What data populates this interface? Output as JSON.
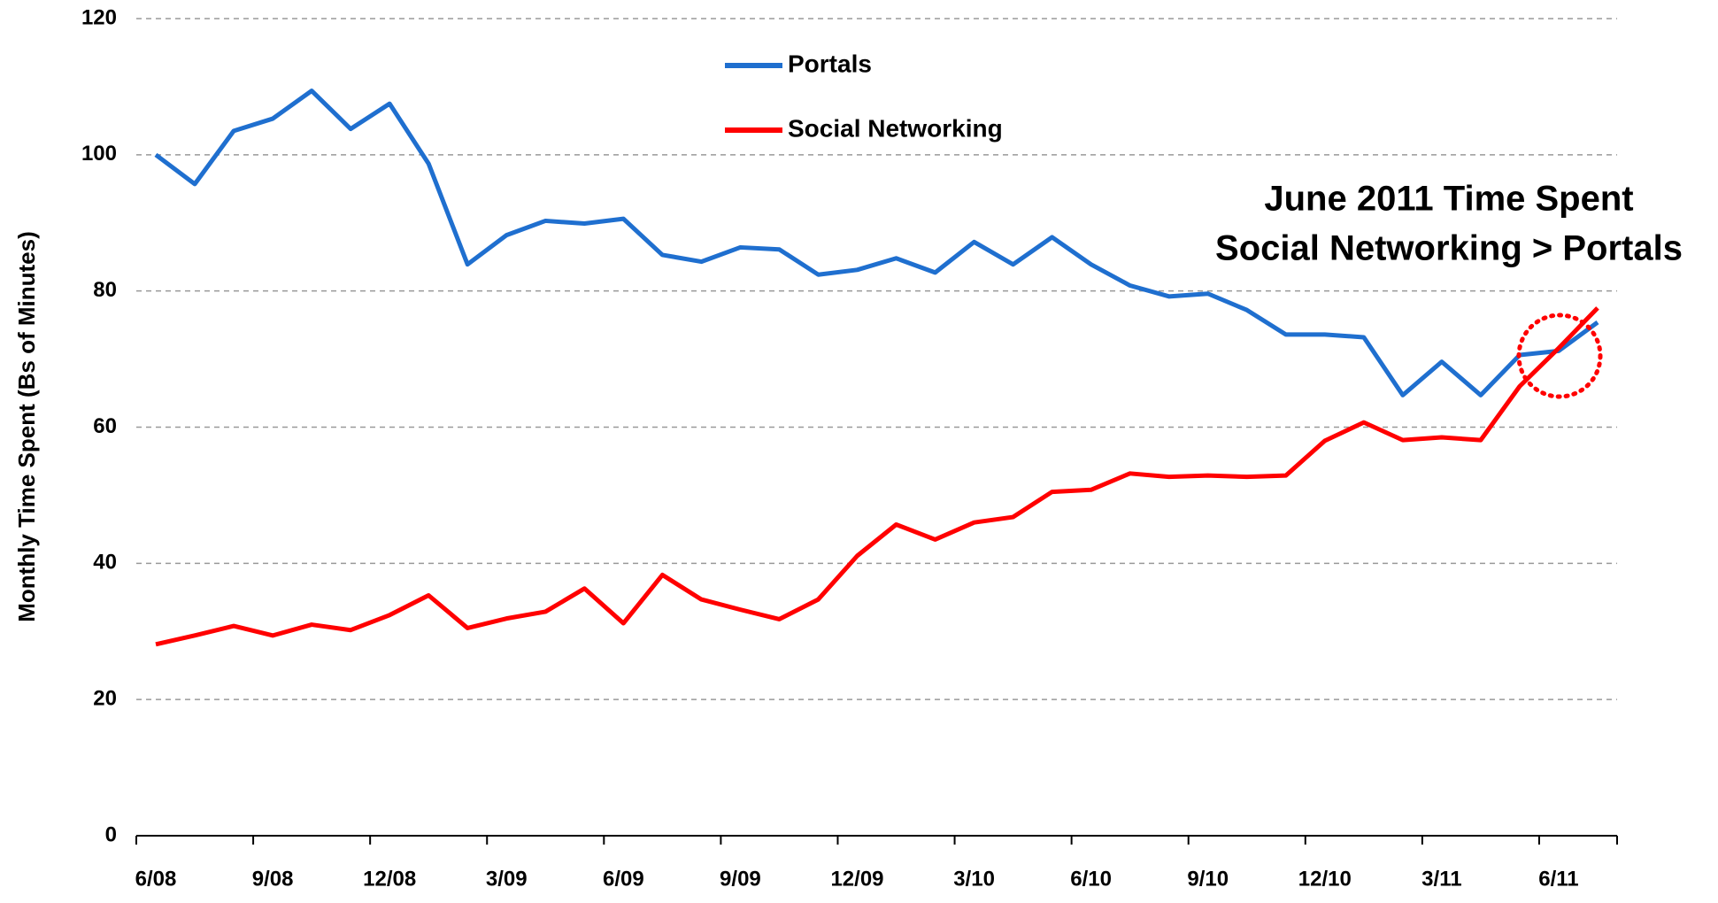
{
  "chart_data": {
    "type": "line",
    "y_label": "Monthly Time Spent (Bs of Minutes)",
    "annotation": [
      "June 2011 Time Spent",
      "Social Networking > Portals"
    ],
    "categories": [
      "6/08",
      null,
      null,
      "9/08",
      null,
      null,
      "12/08",
      null,
      null,
      "3/09",
      null,
      null,
      "6/09",
      null,
      null,
      "9/09",
      null,
      null,
      "12/09",
      null,
      null,
      "3/10",
      null,
      null,
      "6/10",
      null,
      null,
      "9/10",
      null,
      null,
      "12/10",
      null,
      null,
      "3/11",
      null,
      null,
      "6/11",
      null
    ],
    "series": [
      {
        "name": "Portals",
        "color": "#1f6fcf",
        "values": [
          100,
          95.7,
          103.5,
          105.3,
          109.4,
          103.8,
          107.5,
          98.7,
          83.9,
          88.2,
          90.3,
          89.9,
          90.6,
          85.3,
          84.3,
          86.4,
          86.1,
          82.4,
          83.1,
          84.8,
          82.7,
          87.2,
          83.9,
          87.9,
          83.9,
          80.8,
          79.2,
          79.6,
          77.2,
          73.6,
          73.6,
          73.2,
          64.7,
          69.6,
          64.7,
          70.6,
          71.2,
          75.4
        ]
      },
      {
        "name": "Social Networking",
        "color": "#ff0000",
        "values": [
          28.1,
          29.4,
          30.8,
          29.4,
          31.0,
          30.2,
          32.4,
          35.3,
          30.5,
          31.9,
          32.9,
          36.3,
          31.2,
          38.3,
          34.7,
          33.2,
          31.8,
          34.7,
          41.1,
          45.7,
          43.5,
          46.0,
          46.8,
          50.5,
          50.8,
          53.2,
          52.7,
          52.9,
          52.7,
          52.9,
          58.0,
          60.7,
          58.1,
          58.5,
          58.1,
          66.0,
          71.6,
          77.5
        ]
      }
    ],
    "ylim": [
      0,
      120
    ],
    "yticks": [
      0,
      20,
      40,
      60,
      80,
      100,
      120
    ],
    "grid": true
  }
}
